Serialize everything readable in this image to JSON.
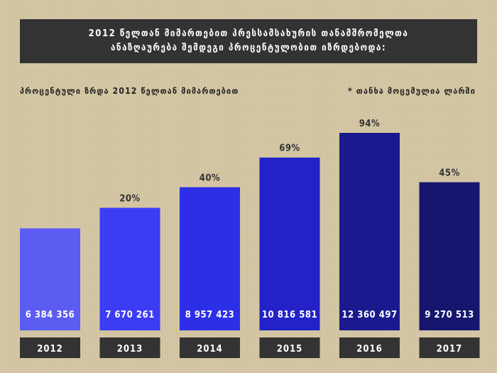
{
  "title": {
    "line1": "2012 წელთან მიმართებით პრესსამსახურის თანამშრომელთა",
    "line2": "ანაზღაურება შემდეგი პროცენტულობით იზრდებოდა:"
  },
  "subtitle": "პროცენტული ზრდა 2012 წელთან მიმართებით",
  "note": "* თანხა მოცემულია ლარში",
  "colors": {
    "background": "#d4c6a3",
    "title_box": "#333333",
    "year_box": "#333333",
    "bars": [
      "#5a5cf2",
      "#3c3cf5",
      "#2c2ee8",
      "#2222c8",
      "#1a1a8e",
      "#16166e"
    ]
  },
  "chart_data": {
    "type": "bar",
    "categories": [
      "2012",
      "2013",
      "2014",
      "2015",
      "2016",
      "2017"
    ],
    "values": [
      6384356,
      7670261,
      8957423,
      10816581,
      12360497,
      9270513
    ],
    "value_labels": [
      "6 384 356",
      "7 670 261",
      "8 957 423",
      "10 816 581",
      "12 360 497",
      "9 270 513"
    ],
    "percent_labels": [
      "",
      "20%",
      "40%",
      "69%",
      "94%",
      "45%"
    ],
    "title": "2012 წელთან მიმართებით პრესსამსახურის თანამშრომელთა ანაზღაურება შემდეგი პროცენტულობით იზრდებოდა:",
    "xlabel": "",
    "ylabel": "",
    "grid": false,
    "legend": "none"
  }
}
